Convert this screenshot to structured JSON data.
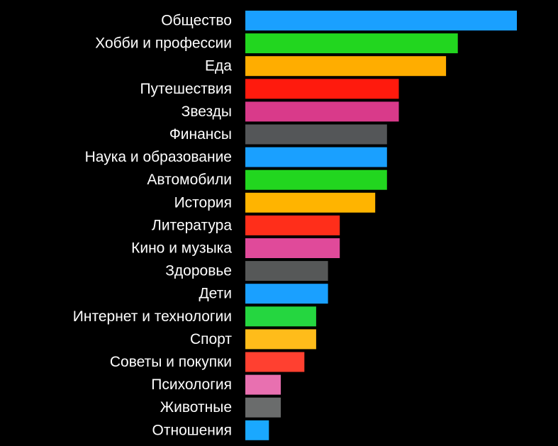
{
  "chart_data": {
    "type": "bar",
    "orientation": "horizontal",
    "title": "",
    "xlabel": "",
    "ylabel": "",
    "grid": false,
    "legend": "none",
    "xlim": [
      0,
      23
    ],
    "categories": [
      "Общество",
      "Хобби и профессии",
      "Еда",
      "Путешествия",
      "Звезды",
      "Финансы",
      "Наука и образование",
      "Автомобили",
      "История",
      "Литература",
      "Кино и музыка",
      "Здоровье",
      "Дети",
      "Интернет и технологии",
      "Спорт",
      "Советы и покупки",
      "Психология",
      "Животные",
      "Отношения"
    ],
    "values": [
      23,
      18,
      17,
      13,
      13,
      12,
      12,
      12,
      11,
      8,
      8,
      7,
      7,
      6,
      6,
      5,
      3,
      3,
      2
    ],
    "colors": [
      "#1aa0ff",
      "#22d61f",
      "#ffad00",
      "#ff1a0d",
      "#d93a8a",
      "#545658",
      "#1aa0ff",
      "#22d61f",
      "#ffb400",
      "#ff2e1a",
      "#e04a9a",
      "#565858",
      "#1aa0ff",
      "#25d640",
      "#ffbc1a",
      "#ff4030",
      "#e870b0",
      "#6a6c6c",
      "#1aa8ff"
    ]
  }
}
